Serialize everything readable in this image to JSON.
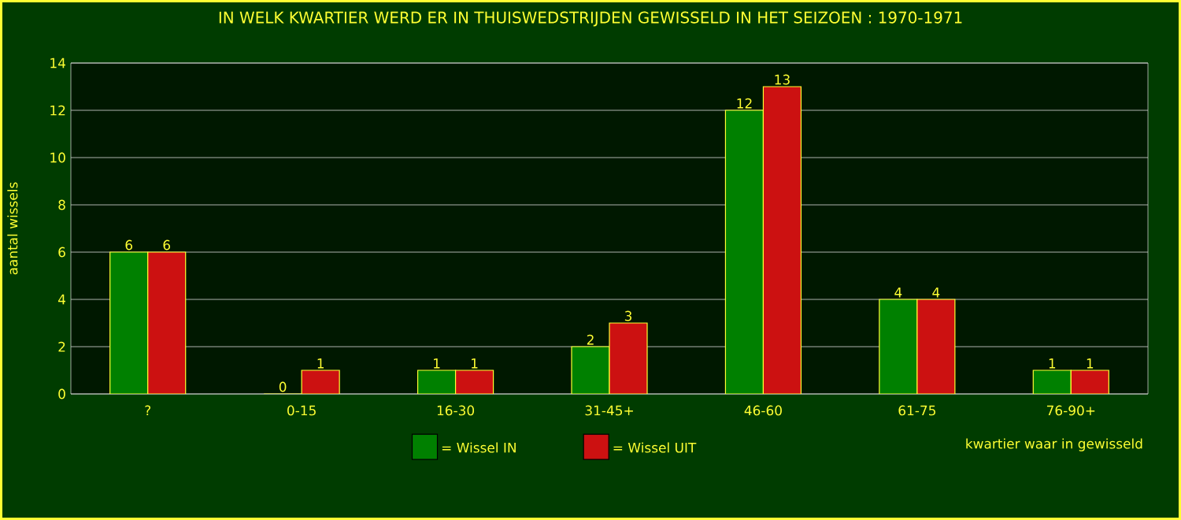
{
  "chart_data": {
    "type": "bar",
    "title": "IN WELK KWARTIER WERD ER IN THUISWEDSTRIJDEN GEWISSELD IN HET SEIZOEN : 1970-1971",
    "xlabel": "kwartier waar in gewisseld",
    "ylabel": "aantal wissels",
    "categories": [
      "?",
      "0-15",
      "16-30",
      "31-45+",
      "46-60",
      "61-75",
      "76-90+"
    ],
    "series": [
      {
        "name": "= Wissel IN",
        "color": "#008000",
        "values": [
          6,
          0,
          1,
          2,
          12,
          4,
          1
        ]
      },
      {
        "name": "= Wissel UIT",
        "color": "#cc1111",
        "values": [
          6,
          1,
          1,
          3,
          13,
          4,
          1
        ]
      }
    ],
    "ylim": [
      0,
      14
    ],
    "yticks": [
      0,
      2,
      4,
      6,
      8,
      10,
      12,
      14
    ],
    "grid": "y",
    "legend": "bottom",
    "data_labels": true
  }
}
